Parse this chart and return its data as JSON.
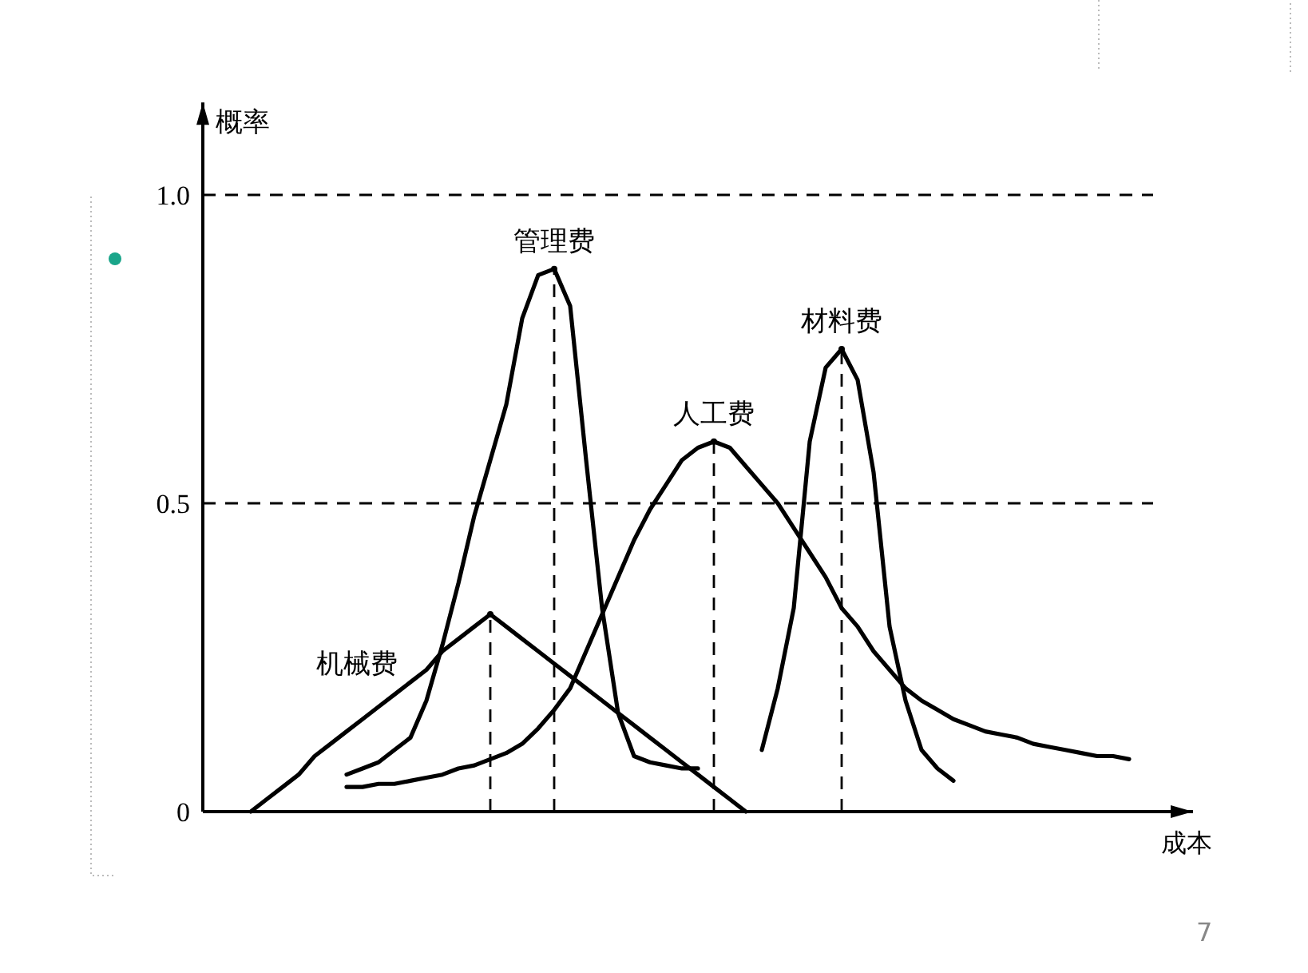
{
  "chart_data": {
    "type": "line",
    "xlabel": "成本",
    "ylabel": "概率",
    "ylim": [
      0,
      1.15
    ],
    "categories": [
      null,
      null,
      null,
      null,
      null,
      null,
      null,
      null,
      null,
      null,
      null,
      null,
      null,
      null,
      null,
      null,
      null,
      null,
      null,
      null,
      null,
      null,
      null,
      null,
      null,
      null,
      null,
      null,
      null,
      null,
      null,
      null,
      null,
      null,
      null,
      null,
      null,
      null,
      null,
      null,
      null,
      null,
      null,
      null,
      null,
      null,
      null,
      null,
      null,
      null,
      null,
      null,
      null,
      null,
      null,
      null,
      null,
      null,
      null,
      null,
      null,
      null,
      null
    ],
    "yticks": [
      {
        "value": 0,
        "label": "0"
      },
      0.5,
      {
        "value": 1,
        "label": "1.0"
      }
    ],
    "tick_labels": "y",
    "marker": "none",
    "line_style": "solid",
    "series": [
      {
        "name": "机械费",
        "color": "#000000",
        "values": [
          null,
          null,
          null,
          0,
          0.02,
          0.04,
          0.06,
          0.09,
          0.11,
          0.13,
          0.15,
          0.17,
          0.19,
          0.21,
          0.23,
          0.26,
          0.28,
          0.3,
          0.32,
          0.3,
          0.28,
          0.26,
          0.24,
          0.22,
          0.2,
          0.18,
          0.16,
          0.14,
          0.12,
          0.1,
          0.08,
          0.06,
          0.04,
          0.02,
          0,
          null,
          null,
          null,
          null,
          null,
          null,
          null,
          null,
          null,
          null,
          null,
          null,
          null,
          null,
          null,
          null,
          null,
          null,
          null,
          null,
          null,
          null,
          null,
          null,
          null,
          null,
          null,
          null
        ]
      },
      {
        "name": "管理费",
        "color": "#000000",
        "values": [
          null,
          null,
          null,
          null,
          null,
          null,
          null,
          null,
          null,
          0.06,
          0.07,
          0.08,
          0.1,
          0.12,
          0.18,
          0.27,
          0.37,
          0.48,
          0.57,
          0.66,
          0.8,
          0.87,
          0.88,
          0.82,
          0.57,
          0.33,
          0.16,
          0.09,
          0.08,
          0.075,
          0.07,
          0.07,
          null,
          null,
          null,
          null,
          null,
          null,
          null,
          null,
          null,
          null,
          null,
          null,
          null,
          null,
          null,
          null,
          null,
          null,
          null,
          null,
          null,
          null,
          null,
          null,
          null,
          null,
          null,
          null,
          null,
          null,
          null
        ]
      },
      {
        "name": "人工费",
        "color": "#000000",
        "values": [
          null,
          null,
          null,
          null,
          null,
          null,
          null,
          null,
          null,
          0.04,
          0.04,
          0.045,
          0.045,
          0.05,
          0.055,
          0.06,
          0.07,
          0.075,
          0.085,
          0.095,
          0.11,
          0.135,
          0.165,
          0.2,
          0.26,
          0.32,
          0.38,
          0.44,
          0.49,
          0.53,
          0.57,
          0.59,
          0.6,
          0.59,
          0.56,
          0.53,
          0.5,
          0.46,
          0.42,
          0.38,
          0.33,
          0.3,
          0.26,
          0.23,
          0.2,
          0.18,
          0.165,
          0.15,
          0.14,
          0.13,
          0.125,
          0.12,
          0.11,
          0.105,
          0.1,
          0.095,
          0.09,
          0.09,
          0.085,
          null,
          null,
          null,
          null
        ]
      },
      {
        "name": "材料费",
        "color": "#000000",
        "values": [
          null,
          null,
          null,
          null,
          null,
          null,
          null,
          null,
          null,
          null,
          null,
          null,
          null,
          null,
          null,
          null,
          null,
          null,
          null,
          null,
          null,
          null,
          null,
          null,
          null,
          null,
          null,
          null,
          null,
          null,
          null,
          null,
          null,
          null,
          null,
          0.1,
          0.2,
          0.33,
          0.6,
          0.72,
          0.75,
          0.7,
          0.55,
          0.3,
          0.18,
          0.1,
          0.07,
          0.05,
          null,
          null,
          null,
          null,
          null,
          null,
          null,
          null,
          null,
          null,
          null,
          null,
          null,
          null,
          null
        ]
      },
      {
        "type": "lollipop",
        "line_style": "dashed",
        "marker": "circle",
        "color": "#000000",
        "values": [
          null,
          null,
          null,
          null,
          null,
          null,
          null,
          null,
          null,
          null,
          null,
          null,
          null,
          null,
          null,
          null,
          null,
          null,
          0.32,
          null,
          null,
          null,
          0.88,
          null,
          null,
          null,
          null,
          null,
          null,
          null,
          null,
          null,
          0.6,
          null,
          null,
          null,
          null,
          null,
          null,
          null,
          0.75,
          null,
          null,
          null,
          null,
          null,
          null,
          null,
          null,
          null,
          null,
          null,
          null,
          null,
          null,
          null,
          null,
          null,
          null,
          null,
          null,
          null,
          null
        ]
      }
    ],
    "ref_lines": [
      {
        "axis": "y",
        "value": 1,
        "line_style": "dashed"
      },
      {
        "axis": "y",
        "value": 0.5,
        "line_style": "dashed"
      }
    ],
    "annotations": [
      "7"
    ]
  }
}
